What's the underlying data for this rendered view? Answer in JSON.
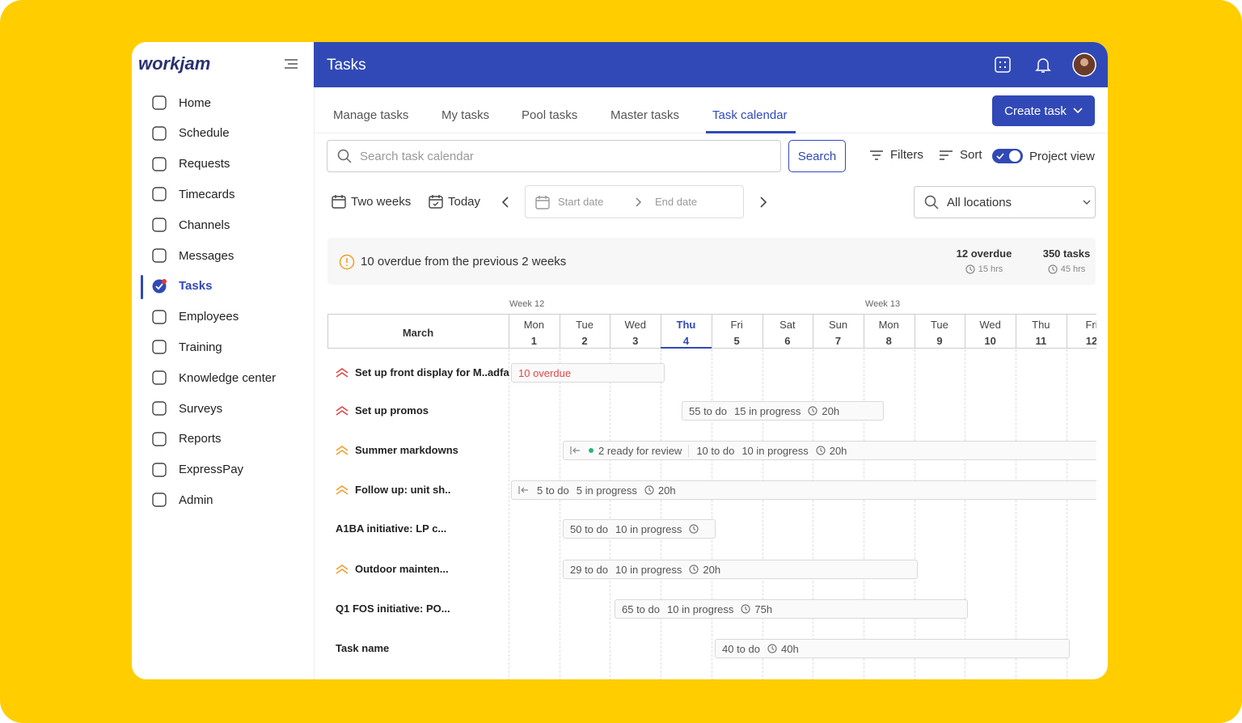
{
  "logo": "workjam",
  "sidebar": {
    "items": [
      "Home",
      "Schedule",
      "Requests",
      "Timecards",
      "Channels",
      "Messages",
      "Tasks",
      "Employees",
      "Training",
      "Knowledge center",
      "Surveys",
      "Reports",
      "ExpressPay",
      "Admin"
    ]
  },
  "header": {
    "title": "Tasks"
  },
  "tabs": [
    "Manage tasks",
    "My tasks",
    "Pool tasks",
    "Master tasks",
    "Task calendar"
  ],
  "create_button": "Create task",
  "toolbar": {
    "search_placeholder": "Search task calendar",
    "search_button": "Search",
    "filters": "Filters",
    "sort": "Sort",
    "project_view": "Project view"
  },
  "range": {
    "period": "Two weeks",
    "today": "Today",
    "start_date": "Start date",
    "end_date": "End date",
    "location": "All locations"
  },
  "summary": {
    "alert": "10 overdue from the previous 2 weeks",
    "stats": [
      {
        "label": "12 overdue",
        "hours": "15 hrs"
      },
      {
        "label": "350 tasks",
        "hours": "45 hrs"
      }
    ]
  },
  "calendar": {
    "weeks": [
      "Week 12",
      "Week 13"
    ],
    "month": "March",
    "days": [
      {
        "day": "Mon",
        "date": 1
      },
      {
        "day": "Tue",
        "date": 2
      },
      {
        "day": "Wed",
        "date": 3
      },
      {
        "day": "Thu",
        "date": 4
      },
      {
        "day": "Fri",
        "date": 5
      },
      {
        "day": "Sat",
        "date": 6
      },
      {
        "day": "Sun",
        "date": 7
      },
      {
        "day": "Mon",
        "date": 8
      },
      {
        "day": "Tue",
        "date": 9
      },
      {
        "day": "Wed",
        "date": 10
      },
      {
        "day": "Thu",
        "date": 11
      },
      {
        "day": "Fri",
        "date": 12
      }
    ],
    "tasks": [
      {
        "name": "Set up front display for M..adfa",
        "labels": [
          "10 overdue"
        ]
      },
      {
        "name": "Set up promos",
        "labels": [
          "55 to do",
          "15 in progress"
        ],
        "hours": "20h"
      },
      {
        "name": "Summer markdowns",
        "review": "2 ready for review",
        "labels": [
          "10 to do",
          "10 in progress"
        ],
        "hours": "20h"
      },
      {
        "name": "Follow up: unit sh..",
        "labels": [
          "5 to do",
          "5 in progress"
        ],
        "hours": "20h"
      },
      {
        "name": "A1BA initiative: LP c...",
        "labels": [
          "50 to do",
          "10 in progress"
        ]
      },
      {
        "name": "Outdoor mainten...",
        "labels": [
          "29 to do",
          "10 in progress"
        ],
        "hours": "20h"
      },
      {
        "name": "Q1 FOS initiative: PO...",
        "labels": [
          "65 to do",
          "10 in progress"
        ],
        "hours": "75h"
      },
      {
        "name": "Task name",
        "labels": [
          "40 to do"
        ],
        "hours": "40h"
      }
    ]
  }
}
